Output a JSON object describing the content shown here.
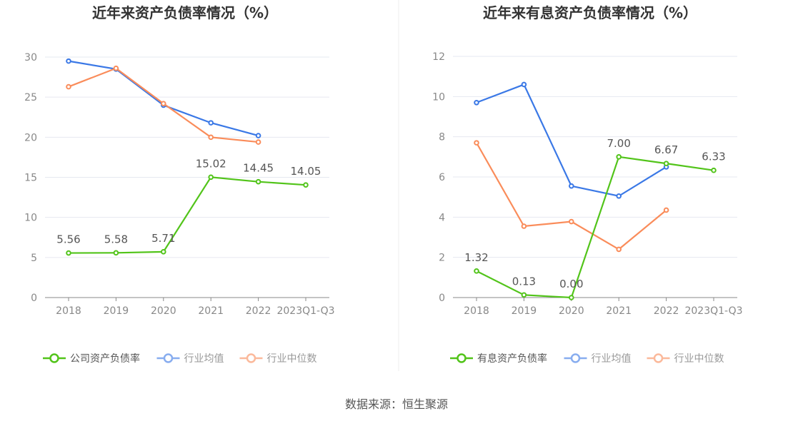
{
  "source": "数据来源：恒生聚源",
  "colors": {
    "company": "#52c41a",
    "avg": "#3a78e6",
    "median": "#fa8c5a"
  },
  "chart_data": [
    {
      "type": "line",
      "title": "近年来资产负债率情况（%）",
      "categories": [
        "2018",
        "2019",
        "2020",
        "2021",
        "2022",
        "2023Q1-Q3"
      ],
      "ylim": [
        0,
        30
      ],
      "yticks": [
        "0",
        "5",
        "10",
        "15",
        "20",
        "25",
        "30"
      ],
      "legend_position": "bottom",
      "series": [
        {
          "name": "公司资产负债率",
          "key": "company",
          "values": [
            5.56,
            5.58,
            5.71,
            15.02,
            14.45,
            14.05
          ],
          "labels": [
            "5.56",
            "5.58",
            "5.71",
            "15.02",
            "14.45",
            "14.05"
          ]
        },
        {
          "name": "行业均值",
          "key": "avg",
          "values": [
            29.5,
            28.5,
            24.0,
            21.8,
            20.2,
            null
          ]
        },
        {
          "name": "行业中位数",
          "key": "median",
          "values": [
            26.3,
            28.6,
            24.2,
            20.0,
            19.4,
            null
          ]
        }
      ]
    },
    {
      "type": "line",
      "title": "近年来有息资产负债率情况（%）",
      "categories": [
        "2018",
        "2019",
        "2020",
        "2021",
        "2022",
        "2023Q1-Q3"
      ],
      "ylim": [
        0,
        12
      ],
      "yticks": [
        "0",
        "2",
        "4",
        "6",
        "8",
        "10",
        "12"
      ],
      "legend_position": "bottom",
      "series": [
        {
          "name": "有息资产负债率",
          "key": "company",
          "values": [
            1.32,
            0.13,
            0.0,
            7.0,
            6.67,
            6.33
          ],
          "labels": [
            "1.32",
            "0.13",
            "0.00",
            "7.00",
            "6.67",
            "6.33"
          ]
        },
        {
          "name": "行业均值",
          "key": "avg",
          "values": [
            9.7,
            10.6,
            5.55,
            5.05,
            6.5,
            null
          ]
        },
        {
          "name": "行业中位数",
          "key": "median",
          "values": [
            7.7,
            3.55,
            3.78,
            2.4,
            4.35,
            null
          ]
        }
      ]
    }
  ]
}
